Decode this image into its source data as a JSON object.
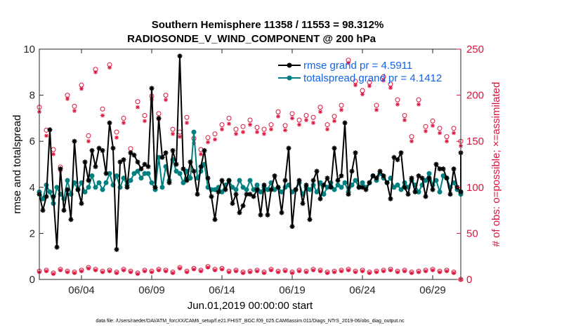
{
  "chart_data": {
    "type": "line",
    "title_line1": "Southern Hemisphere 11358 / 11553 = 98.312%",
    "title_line2": "RADIOSONDE_V_WIND_COMPONENT @ 200 hPa",
    "xlabel": "Jun.01,2019 00:00:00 start",
    "ylabel_left": "rmse and totalspread",
    "ylabel_right": "# of obs: o=possible; ×=assimilated",
    "footnote": "data file: /Users/raeder/DAI/ATM_forcXX/CAM6_setup/f.e21.FHIST_BGC.f09_025.CAM6assim.011/Diags_NTrS_2019-06/obs_diag_output.nc",
    "xlim": [
      1,
      31
    ],
    "ylim_left": [
      0,
      10
    ],
    "ylim_right": [
      0,
      250
    ],
    "x_ticks": [
      4,
      9,
      14,
      19,
      24,
      29
    ],
    "x_tick_labels": [
      "06/04",
      "06/09",
      "06/14",
      "06/19",
      "06/24",
      "06/29"
    ],
    "y_left_ticks": [
      0,
      2,
      4,
      6,
      8,
      10
    ],
    "y_left_tick_labels": [
      "0",
      "2",
      "4",
      "6",
      "8",
      "10"
    ],
    "y_right_ticks": [
      0,
      50,
      100,
      150,
      200,
      250
    ],
    "y_right_tick_labels": [
      "0",
      "50",
      "100",
      "150",
      "200",
      "250"
    ],
    "colors": {
      "rmse": "#000000",
      "spread": "#008080",
      "obs": "#dc143c",
      "right_axis": "#dc143c",
      "legend_text": "#1464e6"
    },
    "legend": {
      "location": "top-right",
      "entries": [
        "rmse grand pr = 4.5911",
        "totalspread grand pr = 4.1412"
      ]
    },
    "series": [
      {
        "name": "rmse",
        "x": [
          1.0,
          1.25,
          1.5,
          1.75,
          2.0,
          2.25,
          2.5,
          2.75,
          3.0,
          3.25,
          3.5,
          3.75,
          4.0,
          4.25,
          4.5,
          4.75,
          5.0,
          5.25,
          5.5,
          5.75,
          6.0,
          6.25,
          6.5,
          6.75,
          7.0,
          7.25,
          7.5,
          7.75,
          8.0,
          8.25,
          8.5,
          8.75,
          9.0,
          9.25,
          9.5,
          9.75,
          10.0,
          10.25,
          10.5,
          10.75,
          11.0,
          11.25,
          11.5,
          11.75,
          12.0,
          12.25,
          12.5,
          12.75,
          13.0,
          13.25,
          13.5,
          13.75,
          14.0,
          14.25,
          14.5,
          14.75,
          15.0,
          15.25,
          15.5,
          15.75,
          16.0,
          16.25,
          16.5,
          16.75,
          17.0,
          17.25,
          17.5,
          17.75,
          18.0,
          18.25,
          18.5,
          18.75,
          19.0,
          19.25,
          19.5,
          19.75,
          20.0,
          20.25,
          20.5,
          20.75,
          21.0,
          21.25,
          21.5,
          21.75,
          22.0,
          22.25,
          22.5,
          22.75,
          23.0,
          23.25,
          23.5,
          23.75,
          24.0,
          24.25,
          24.5,
          24.75,
          25.0,
          25.25,
          25.5,
          25.75,
          26.0,
          26.25,
          26.5,
          26.75,
          27.0,
          27.25,
          27.5,
          27.75,
          28.0,
          28.25,
          28.5,
          28.75,
          29.0,
          29.25,
          29.5,
          29.75,
          30.0,
          30.25,
          30.5,
          30.75,
          31.0,
          31.25
        ],
        "values": [
          3.7,
          3.0,
          3.6,
          6.5,
          3.6,
          1.4,
          4.8,
          3.0,
          3.9,
          2.6,
          6.0,
          3.9,
          3.3,
          5.1,
          4.3,
          5.6,
          4.9,
          5.7,
          5.6,
          4.6,
          6.8,
          5.7,
          1.3,
          5.1,
          5.2,
          4.0,
          5.5,
          5.4,
          5.1,
          4.8,
          5.0,
          4.9,
          8.3,
          4.0,
          7.0,
          5.3,
          5.5,
          4.2,
          5.6,
          5.0,
          9.7,
          4.8,
          4.3,
          5.1,
          4.7,
          3.7,
          4.9,
          5.6,
          4.4,
          3.6,
          2.6,
          3.8,
          4.3,
          3.9,
          4.3,
          3.3,
          3.7,
          2.9,
          3.2,
          3.7,
          3.7,
          3.6,
          3.9,
          2.8,
          4.1,
          2.8,
          3.9,
          4.5,
          4.0,
          2.9,
          4.3,
          5.7,
          2.3,
          3.9,
          4.3,
          3.3,
          4.1,
          2.6,
          4.3,
          4.7,
          3.5,
          4.1,
          4.4,
          4.0,
          5.7,
          4.3,
          4.5,
          6.8,
          3.7,
          4.7,
          5.5,
          4.0,
          4.0,
          3.9,
          4.2,
          4.5,
          4.4,
          4.7,
          4.5,
          4.2,
          3.5,
          5.3,
          5.2,
          5.5,
          4.0,
          3.7,
          4.4,
          3.8,
          4.5,
          4.4,
          3.6,
          4.4,
          3.9,
          5.0,
          4.8,
          4.8,
          4.4,
          3.7,
          4.8,
          4.0,
          3.8,
          5.5
        ]
      },
      {
        "name": "totalspread",
        "x": [
          1.0,
          1.25,
          1.5,
          1.75,
          2.0,
          2.25,
          2.5,
          2.75,
          3.0,
          3.25,
          3.5,
          3.75,
          4.0,
          4.25,
          4.5,
          4.75,
          5.0,
          5.25,
          5.5,
          5.75,
          6.0,
          6.25,
          6.5,
          6.75,
          7.0,
          7.25,
          7.5,
          7.75,
          8.0,
          8.25,
          8.5,
          8.75,
          9.0,
          9.25,
          9.5,
          9.75,
          10.0,
          10.25,
          10.5,
          10.75,
          11.0,
          11.25,
          11.5,
          11.75,
          12.0,
          12.25,
          12.5,
          12.75,
          13.0,
          13.25,
          13.5,
          13.75,
          14.0,
          14.25,
          14.5,
          14.75,
          15.0,
          15.25,
          15.5,
          15.75,
          16.0,
          16.25,
          16.5,
          16.75,
          17.0,
          17.25,
          17.5,
          17.75,
          18.0,
          18.25,
          18.5,
          18.75,
          19.0,
          19.25,
          19.5,
          19.75,
          20.0,
          20.25,
          20.5,
          20.75,
          21.0,
          21.25,
          21.5,
          21.75,
          22.0,
          22.25,
          22.5,
          22.75,
          23.0,
          23.25,
          23.5,
          23.75,
          24.0,
          24.25,
          24.5,
          24.75,
          25.0,
          25.25,
          25.5,
          25.75,
          26.0,
          26.25,
          26.5,
          26.75,
          27.0,
          27.25,
          27.5,
          27.75,
          28.0,
          28.25,
          28.5,
          28.75,
          29.0,
          29.25,
          29.5,
          29.75,
          30.0,
          30.25,
          30.5,
          30.75,
          31.0,
          31.25
        ],
        "values": [
          3.8,
          3.5,
          4.1,
          3.8,
          3.3,
          4.0,
          3.7,
          3.5,
          4.3,
          3.7,
          4.2,
          3.9,
          4.2,
          3.8,
          4.0,
          4.5,
          4.0,
          4.2,
          3.9,
          4.2,
          4.6,
          4.1,
          4.5,
          4.0,
          4.4,
          4.1,
          4.3,
          4.6,
          4.7,
          4.4,
          4.6,
          4.6,
          4.2,
          3.9,
          5.3,
          4.0,
          4.9,
          4.3,
          5.2,
          4.7,
          4.6,
          4.2,
          4.7,
          4.4,
          6.4,
          4.4,
          4.7,
          5.0,
          4.0,
          3.9,
          3.9,
          4.0,
          3.8,
          4.1,
          4.3,
          4.0,
          3.9,
          4.3,
          4.0,
          3.9,
          4.3,
          3.9,
          4.1,
          3.8,
          4.0,
          3.9,
          4.2,
          3.9,
          4.0,
          3.8,
          4.0,
          4.1,
          3.8,
          3.9,
          4.2,
          3.7,
          4.0,
          3.9,
          4.1,
          3.8,
          4.2,
          3.7,
          4.0,
          4.2,
          3.9,
          4.1,
          4.0,
          4.2,
          3.8,
          4.1,
          4.3,
          4.0,
          4.2,
          4.0,
          4.2,
          4.5,
          4.3,
          4.6,
          4.4,
          4.2,
          4.4,
          4.0,
          4.1,
          3.9,
          4.2,
          4.0,
          4.3,
          4.1,
          3.8,
          4.1,
          4.3,
          4.6,
          4.1,
          4.3,
          3.8,
          4.5,
          4.4,
          4.0,
          4.2,
          3.9,
          3.8,
          3.7
        ]
      },
      {
        "name": "obs_possible_high",
        "x": [
          1.0,
          1.5,
          2.0,
          2.5,
          3.0,
          3.5,
          4.0,
          4.5,
          5.0,
          5.5,
          6.0,
          6.5,
          7.0,
          7.5,
          8.0,
          8.5,
          9.0,
          9.5,
          10.0,
          10.5,
          11.0,
          11.5,
          12.0,
          12.5,
          13.0,
          13.5,
          14.0,
          14.5,
          15.0,
          15.5,
          16.0,
          16.5,
          17.0,
          17.5,
          18.0,
          18.5,
          19.0,
          19.5,
          20.0,
          20.5,
          21.0,
          21.5,
          22.0,
          22.5,
          23.0,
          23.5,
          24.0,
          24.5,
          25.0,
          25.5,
          26.0,
          26.5,
          27.0,
          27.5,
          28.0,
          28.5,
          29.0,
          29.5,
          30.0,
          30.5,
          31.0
        ],
        "values": [
          187,
          162,
          141,
          122,
          200,
          188,
          211,
          156,
          228,
          185,
          233,
          160,
          175,
          142,
          193,
          178,
          199,
          180,
          200,
          163,
          160,
          176,
          153,
          141,
          154,
          158,
          168,
          175,
          163,
          166,
          173,
          165,
          163,
          168,
          182,
          167,
          180,
          173,
          178,
          176,
          187,
          168,
          177,
          189,
          238,
          215,
          205,
          214,
          189,
          220,
          212,
          195,
          178,
          155,
          195,
          166,
          172,
          164,
          155,
          164,
          150
        ]
      },
      {
        "name": "obs_assimilated_high",
        "x": [
          1.0,
          1.5,
          2.0,
          2.5,
          3.0,
          3.5,
          4.0,
          4.5,
          5.0,
          5.5,
          6.0,
          6.5,
          7.0,
          7.5,
          8.0,
          8.5,
          9.0,
          9.5,
          10.0,
          10.5,
          11.0,
          11.5,
          12.0,
          12.5,
          13.0,
          13.5,
          14.0,
          14.5,
          15.0,
          15.5,
          16.0,
          16.5,
          17.0,
          17.5,
          18.0,
          18.5,
          19.0,
          19.5,
          20.0,
          20.5,
          21.0,
          21.5,
          22.0,
          22.5,
          23.0,
          23.5,
          24.0,
          24.5,
          25.0,
          25.5,
          26.0,
          26.5,
          27.0,
          27.5,
          28.0,
          28.5,
          29.0,
          29.5,
          30.0,
          30.5,
          31.0
        ],
        "values": [
          182,
          156,
          136,
          118,
          196,
          183,
          207,
          150,
          225,
          178,
          230,
          154,
          170,
          137,
          187,
          172,
          195,
          174,
          195,
          158,
          155,
          170,
          148,
          136,
          149,
          152,
          163,
          169,
          158,
          160,
          168,
          160,
          158,
          163,
          177,
          162,
          175,
          168,
          173,
          170,
          182,
          163,
          172,
          184,
          235,
          211,
          201,
          210,
          184,
          216,
          208,
          190,
          173,
          150,
          190,
          161,
          167,
          159,
          150,
          159,
          145
        ]
      },
      {
        "name": "obs_possible_low",
        "x": [
          1.0,
          1.5,
          2.0,
          2.5,
          3.0,
          3.5,
          4.0,
          4.5,
          5.0,
          5.5,
          6.0,
          6.5,
          7.0,
          7.5,
          8.0,
          8.5,
          9.0,
          9.5,
          10.0,
          10.5,
          11.0,
          11.5,
          12.0,
          12.5,
          13.0,
          13.5,
          14.0,
          14.5,
          15.0,
          15.5,
          16.0,
          16.5,
          17.0,
          17.5,
          18.0,
          18.5,
          19.0,
          19.5,
          20.0,
          20.5,
          21.0,
          21.5,
          22.0,
          22.5,
          23.0,
          23.5,
          24.0,
          24.5,
          25.0,
          25.5,
          26.0,
          26.5,
          27.0,
          27.5,
          28.0,
          28.5,
          29.0,
          29.5,
          30.0,
          30.5,
          31.0
        ],
        "values": [
          9,
          10,
          7,
          11,
          9,
          8,
          10,
          13,
          11,
          9,
          10,
          8,
          11,
          9,
          7,
          10,
          9,
          11,
          10,
          8,
          13,
          9,
          12,
          10,
          14,
          11,
          12,
          9,
          10,
          8,
          9,
          10,
          8,
          11,
          9,
          10,
          8,
          10,
          9,
          11,
          10,
          8,
          9,
          10,
          11,
          9,
          10,
          8,
          9,
          10,
          11,
          9,
          10,
          8,
          9,
          10,
          11,
          9,
          10,
          8,
          0
        ]
      },
      {
        "name": "obs_assimilated_low",
        "x": [
          1.0,
          1.5,
          2.0,
          2.5,
          3.0,
          3.5,
          4.0,
          4.5,
          5.0,
          5.5,
          6.0,
          6.5,
          7.0,
          7.5,
          8.0,
          8.5,
          9.0,
          9.5,
          10.0,
          10.5,
          11.0,
          11.5,
          12.0,
          12.5,
          13.0,
          13.5,
          14.0,
          14.5,
          15.0,
          15.5,
          16.0,
          16.5,
          17.0,
          17.5,
          18.0,
          18.5,
          19.0,
          19.5,
          20.0,
          20.5,
          21.0,
          21.5,
          22.0,
          22.5,
          23.0,
          23.5,
          24.0,
          24.5,
          25.0,
          25.5,
          26.0,
          26.5,
          27.0,
          27.5,
          28.0,
          28.5,
          29.0,
          29.5,
          30.0,
          30.5,
          31.0
        ],
        "values": [
          8,
          9,
          6,
          10,
          8,
          7,
          9,
          12,
          10,
          8,
          9,
          7,
          10,
          8,
          6,
          9,
          8,
          10,
          9,
          7,
          12,
          8,
          11,
          9,
          13,
          10,
          11,
          8,
          9,
          7,
          8,
          9,
          7,
          10,
          8,
          9,
          7,
          9,
          8,
          10,
          9,
          7,
          8,
          9,
          10,
          8,
          9,
          7,
          8,
          9,
          10,
          8,
          9,
          7,
          8,
          9,
          10,
          8,
          9,
          7,
          0
        ]
      }
    ]
  }
}
